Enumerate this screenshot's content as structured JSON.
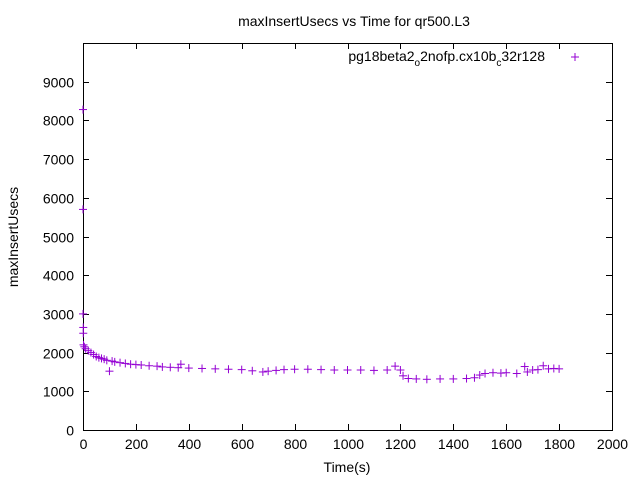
{
  "chart_data": {
    "type": "scatter",
    "title": "maxInsertUsecs vs Time for qr500.L3",
    "xlabel": "Time(s)",
    "ylabel": "maxInsertUsecs",
    "xlim": [
      0,
      2000
    ],
    "ylim": [
      0,
      10000
    ],
    "xticks": [
      "0",
      "200",
      "400",
      "600",
      "800",
      "1000",
      "1200",
      "1400",
      "1600",
      "1800",
      "2000"
    ],
    "yticks": [
      "0",
      "1000",
      "2000",
      "3000",
      "4000",
      "5000",
      "6000",
      "7000",
      "8000",
      "9000"
    ],
    "grid": false,
    "legend_position": "top-right",
    "marker": "+",
    "series": [
      {
        "name": "pg18beta2_o2nofp.cx10b_c32r128",
        "legend_parts": [
          {
            "text": "pg18beta2",
            "sub": false
          },
          {
            "text": "o",
            "sub": true
          },
          {
            "text": "2nofp.cx10b",
            "sub": false
          },
          {
            "text": "c",
            "sub": true
          },
          {
            "text": "32r128",
            "sub": false
          }
        ],
        "color": "#9400d3",
        "points": [
          [
            0,
            8280
          ],
          [
            0,
            5700
          ],
          [
            0,
            3000
          ],
          [
            1,
            2650
          ],
          [
            1,
            2500
          ],
          [
            2,
            2200
          ],
          [
            5,
            2150
          ],
          [
            10,
            2100
          ],
          [
            20,
            2050
          ],
          [
            30,
            2000
          ],
          [
            40,
            1950
          ],
          [
            50,
            1900
          ],
          [
            60,
            1870
          ],
          [
            70,
            1850
          ],
          [
            80,
            1830
          ],
          [
            90,
            1800
          ],
          [
            100,
            1520
          ],
          [
            110,
            1780
          ],
          [
            120,
            1760
          ],
          [
            140,
            1740
          ],
          [
            160,
            1720
          ],
          [
            180,
            1700
          ],
          [
            200,
            1690
          ],
          [
            220,
            1680
          ],
          [
            250,
            1660
          ],
          [
            280,
            1650
          ],
          [
            300,
            1630
          ],
          [
            330,
            1620
          ],
          [
            360,
            1610
          ],
          [
            370,
            1700
          ],
          [
            400,
            1600
          ],
          [
            450,
            1590
          ],
          [
            500,
            1580
          ],
          [
            550,
            1570
          ],
          [
            600,
            1560
          ],
          [
            640,
            1530
          ],
          [
            680,
            1500
          ],
          [
            700,
            1520
          ],
          [
            730,
            1540
          ],
          [
            760,
            1560
          ],
          [
            800,
            1570
          ],
          [
            850,
            1570
          ],
          [
            900,
            1560
          ],
          [
            950,
            1550
          ],
          [
            1000,
            1550
          ],
          [
            1050,
            1550
          ],
          [
            1100,
            1540
          ],
          [
            1150,
            1550
          ],
          [
            1180,
            1650
          ],
          [
            1200,
            1550
          ],
          [
            1210,
            1400
          ],
          [
            1230,
            1330
          ],
          [
            1260,
            1320
          ],
          [
            1300,
            1310
          ],
          [
            1350,
            1320
          ],
          [
            1400,
            1320
          ],
          [
            1450,
            1330
          ],
          [
            1480,
            1350
          ],
          [
            1500,
            1420
          ],
          [
            1520,
            1460
          ],
          [
            1550,
            1480
          ],
          [
            1580,
            1470
          ],
          [
            1600,
            1480
          ],
          [
            1640,
            1460
          ],
          [
            1670,
            1640
          ],
          [
            1680,
            1500
          ],
          [
            1700,
            1550
          ],
          [
            1720,
            1560
          ],
          [
            1740,
            1660
          ],
          [
            1760,
            1580
          ],
          [
            1780,
            1590
          ],
          [
            1800,
            1580
          ]
        ]
      }
    ]
  }
}
